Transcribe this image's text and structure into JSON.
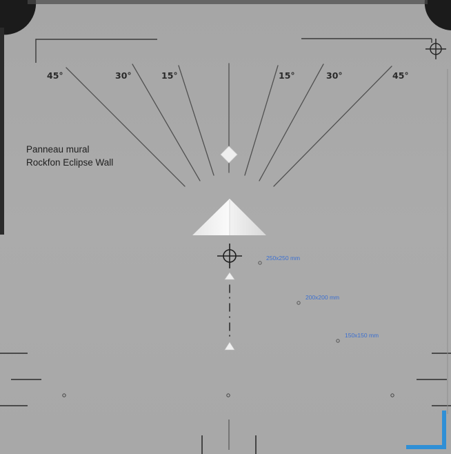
{
  "photo": {
    "panel_label": {
      "line1": "Panneau mural",
      "line2": "Rockfon Eclipse Wall"
    },
    "angle_marks": {
      "left": [
        "45°",
        "30°",
        "15°"
      ],
      "right": [
        "15°",
        "30°",
        "45°"
      ]
    },
    "sample_sizes": [
      "250x250 mm",
      "200x200 mm",
      "150x150 mm"
    ],
    "colors": {
      "panel": "#a8a8a8",
      "lines": "#4a4a4a",
      "size_text": "#3b6fd0",
      "corner_bracket": "#2f8fd6",
      "corner_cutout": "#1b1b1b"
    }
  }
}
